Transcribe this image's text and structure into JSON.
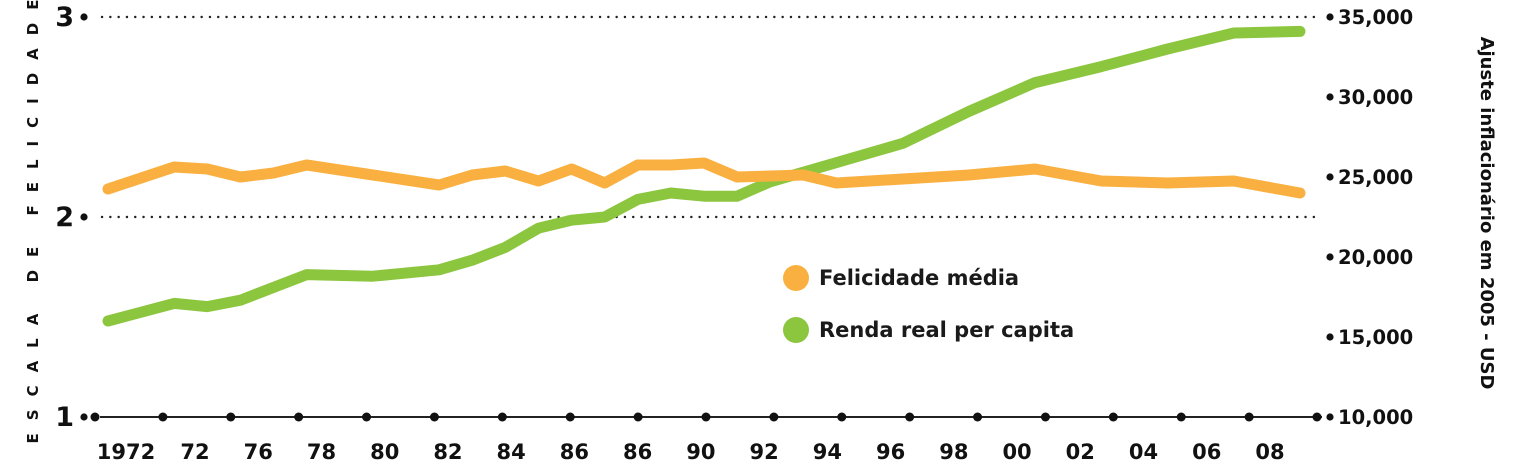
{
  "chart_data": {
    "type": "line",
    "left_axis": {
      "label": "ESCALA DE FELICIDADE",
      "ylim": [
        1,
        3
      ],
      "ticks": [
        1,
        2,
        3
      ],
      "tick_labels": [
        "1",
        "2",
        "3"
      ]
    },
    "right_axis": {
      "label": "Ajuste inflacionário em 2005 - USD",
      "ylim": [
        10000,
        35000
      ],
      "ticks": [
        10000,
        15000,
        20000,
        25000,
        30000,
        35000
      ],
      "tick_labels": [
        "10,000",
        "15,000",
        "20,000",
        "25,000",
        "30,000",
        "35,000"
      ]
    },
    "x_tick_labels": [
      "1972",
      "72",
      "76",
      "78",
      "80",
      "82",
      "84",
      "86",
      "86",
      "90",
      "92",
      "94",
      "96",
      "98",
      "00",
      "02",
      "04",
      "06",
      "08"
    ],
    "grid_dotted_at_left": [
      2,
      3
    ],
    "series": [
      {
        "name": "Felicidade média",
        "color": "#f9b040",
        "axis": "left",
        "x": [
          1972,
          1974,
          1975,
          1976,
          1977,
          1978,
          1980,
          1982,
          1983,
          1984,
          1985,
          1986,
          1987,
          1988,
          1989,
          1990,
          1991,
          1993,
          1994,
          1996,
          1998,
          2000,
          2002,
          2004,
          2006,
          2008
        ],
        "values": [
          2.14,
          2.25,
          2.24,
          2.2,
          2.22,
          2.26,
          2.21,
          2.16,
          2.21,
          2.23,
          2.18,
          2.24,
          2.17,
          2.26,
          2.26,
          2.27,
          2.2,
          2.21,
          2.17,
          2.19,
          2.21,
          2.24,
          2.18,
          2.17,
          2.18,
          2.12
        ]
      },
      {
        "name": "Renda real per capita",
        "color": "#8cc63f",
        "axis": "right",
        "x": [
          1972,
          1974,
          1975,
          1976,
          1978,
          1980,
          1982,
          1983,
          1984,
          1985,
          1986,
          1987,
          1988,
          1989,
          1990,
          1991,
          1992,
          1994,
          1996,
          1998,
          2000,
          2002,
          2004,
          2006,
          2008
        ],
        "values": [
          16000,
          17100,
          16900,
          17300,
          18900,
          18800,
          19200,
          19800,
          20600,
          21800,
          22300,
          22500,
          23600,
          24000,
          23800,
          23800,
          24700,
          25900,
          27100,
          29100,
          30900,
          31900,
          33000,
          34000,
          34100
        ]
      }
    ]
  }
}
